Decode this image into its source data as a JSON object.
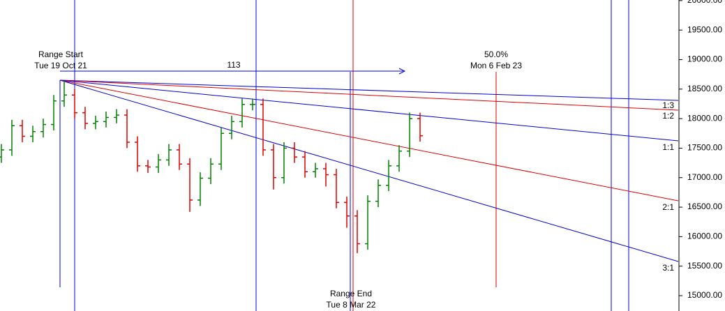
{
  "chart_data": {
    "type": "ohlc",
    "up_color": "#008000",
    "down_color": "#e00000",
    "open": [
      17350,
      17470,
      17880,
      17700,
      17780,
      17900,
      18300,
      18400,
      18100,
      17920,
      17950,
      18020,
      18060,
      17600,
      17200,
      17180,
      17300,
      17470,
      17230,
      16620,
      16990,
      17230,
      17750,
      17950,
      18240,
      18240,
      17470,
      17000,
      17500,
      17350,
      17100,
      17150,
      17050,
      16580,
      16350,
      15880,
      16600,
      16870,
      17200,
      17450,
      18000
    ],
    "high": [
      17570,
      17980,
      17980,
      17880,
      18000,
      18400,
      18640,
      18500,
      18200,
      18050,
      18120,
      18160,
      18160,
      17700,
      17300,
      17400,
      17570,
      17570,
      17330,
      17090,
      17330,
      17850,
      18050,
      18340,
      18340,
      18340,
      17570,
      17600,
      17600,
      17450,
      17250,
      17250,
      17150,
      16680,
      16450,
      16700,
      16970,
      17300,
      17550,
      18100,
      18100
    ],
    "low": [
      17250,
      17370,
      17600,
      17600,
      17680,
      17800,
      18200,
      18000,
      17820,
      17820,
      17850,
      17920,
      17500,
      17100,
      17080,
      17080,
      17200,
      17130,
      16420,
      16520,
      16890,
      17130,
      17650,
      17850,
      18140,
      17370,
      16800,
      16900,
      17250,
      17000,
      17000,
      16850,
      16480,
      16150,
      15720,
      15780,
      16500,
      16770,
      17100,
      17350,
      17610
    ],
    "close": [
      17470,
      17880,
      17700,
      17780,
      17900,
      18300,
      18400,
      18100,
      17920,
      17950,
      18020,
      18060,
      17600,
      17200,
      17180,
      17300,
      17470,
      17230,
      16620,
      16990,
      17230,
      17750,
      17950,
      18240,
      18240,
      17470,
      17000,
      17500,
      17350,
      17100,
      17150,
      17050,
      16580,
      16350,
      15880,
      16600,
      16870,
      17200,
      17450,
      18000,
      17710
    ],
    "ylim": [
      14740,
      20010
    ],
    "yticks": [
      {
        "value": 20000,
        "label": "20000.00"
      },
      {
        "value": 19500,
        "label": "19500.00"
      },
      {
        "value": 19000,
        "label": "19000.00"
      },
      {
        "value": 18500,
        "label": "18500.00"
      },
      {
        "value": 18000,
        "label": "18000.00"
      },
      {
        "value": 17500,
        "label": "17500.00"
      },
      {
        "value": 17000,
        "label": "17000.00"
      },
      {
        "value": 16500,
        "label": "16500.00"
      },
      {
        "value": 16000,
        "label": "16000.00"
      },
      {
        "value": 15500,
        "label": "15500.00"
      },
      {
        "value": 15000,
        "label": "15000.00"
      }
    ],
    "annotations": {
      "range_start": {
        "label": "Range Start",
        "date": "Tue 19 Oct 21"
      },
      "range_end": {
        "label": "Range End",
        "date": "Tue 8 Mar 22"
      },
      "span": "113",
      "midpoint": {
        "label": "50.0%",
        "date": "Mon 6 Feb 23"
      },
      "fan_labels": [
        "1:3",
        "1:2",
        "1:1",
        "2:1",
        "3:1"
      ]
    }
  }
}
